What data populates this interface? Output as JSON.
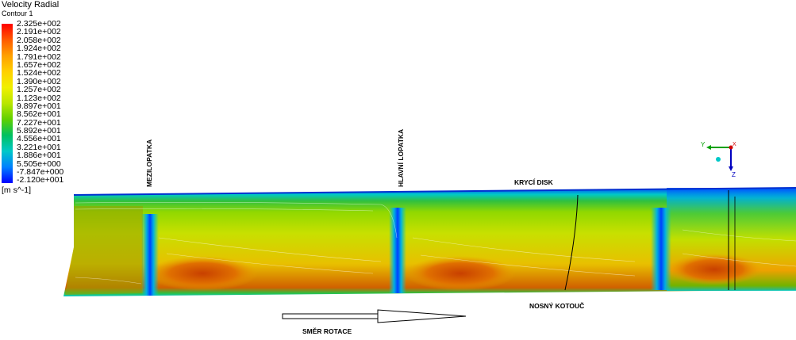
{
  "legend": {
    "title": "Velocity Radial",
    "subtitle": "Contour 1",
    "unit": "[m s^-1]",
    "levels": [
      "2.325e+002",
      "2.191e+002",
      "2.058e+002",
      "1.924e+002",
      "1.791e+002",
      "1.657e+002",
      "1.524e+002",
      "1.390e+002",
      "1.257e+002",
      "1.123e+002",
      "9.897e+001",
      "8.562e+001",
      "7.227e+001",
      "5.892e+001",
      "4.556e+001",
      "3.221e+001",
      "1.886e+001",
      "5.505e+000",
      "-7.847e+000",
      "-2.120e+001"
    ],
    "colors": [
      "#ff0000",
      "#ff5a00",
      "#ffa000",
      "#ffd000",
      "#f0f000",
      "#b8e600",
      "#60d000",
      "#00c060",
      "#00c8c8",
      "#0080ff",
      "#0000ff"
    ]
  },
  "labels": {
    "mezilopatka": "MEZILOPATKA",
    "hlavni_lopatka": "HLAVNÍ LOPATKA",
    "kryci_disk": "KRYCÍ DISK",
    "nosny_kotouc": "NOSNÝ KOTOUČ",
    "smer_rotace": "SMĚR ROTACE"
  },
  "axes": {
    "y": "Y",
    "z": "Z",
    "x": "X"
  }
}
